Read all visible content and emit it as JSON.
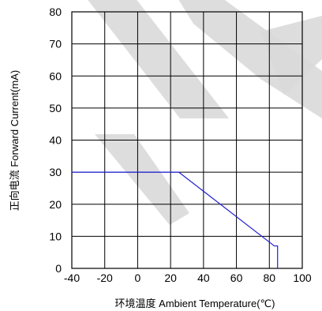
{
  "chart_data": {
    "type": "line",
    "xlabel": "环境温度  Ambient Temperature(℃)",
    "ylabel": "正向电流 Forward Current(mA)",
    "xlim": [
      -40,
      100
    ],
    "ylim": [
      0,
      80
    ],
    "x_ticks": [
      "-40",
      "-20",
      "0",
      "20",
      "40",
      "60",
      "80",
      "100"
    ],
    "y_ticks": [
      "0",
      "10",
      "20",
      "30",
      "40",
      "50",
      "60",
      "70",
      "80"
    ],
    "grid": true,
    "series": [
      {
        "color": "#1f1fd6",
        "x": [
          -40,
          25,
          83,
          85,
          85
        ],
        "y": [
          30,
          30,
          7,
          7,
          0
        ]
      }
    ],
    "watermark_color": "#d9d9d9"
  }
}
